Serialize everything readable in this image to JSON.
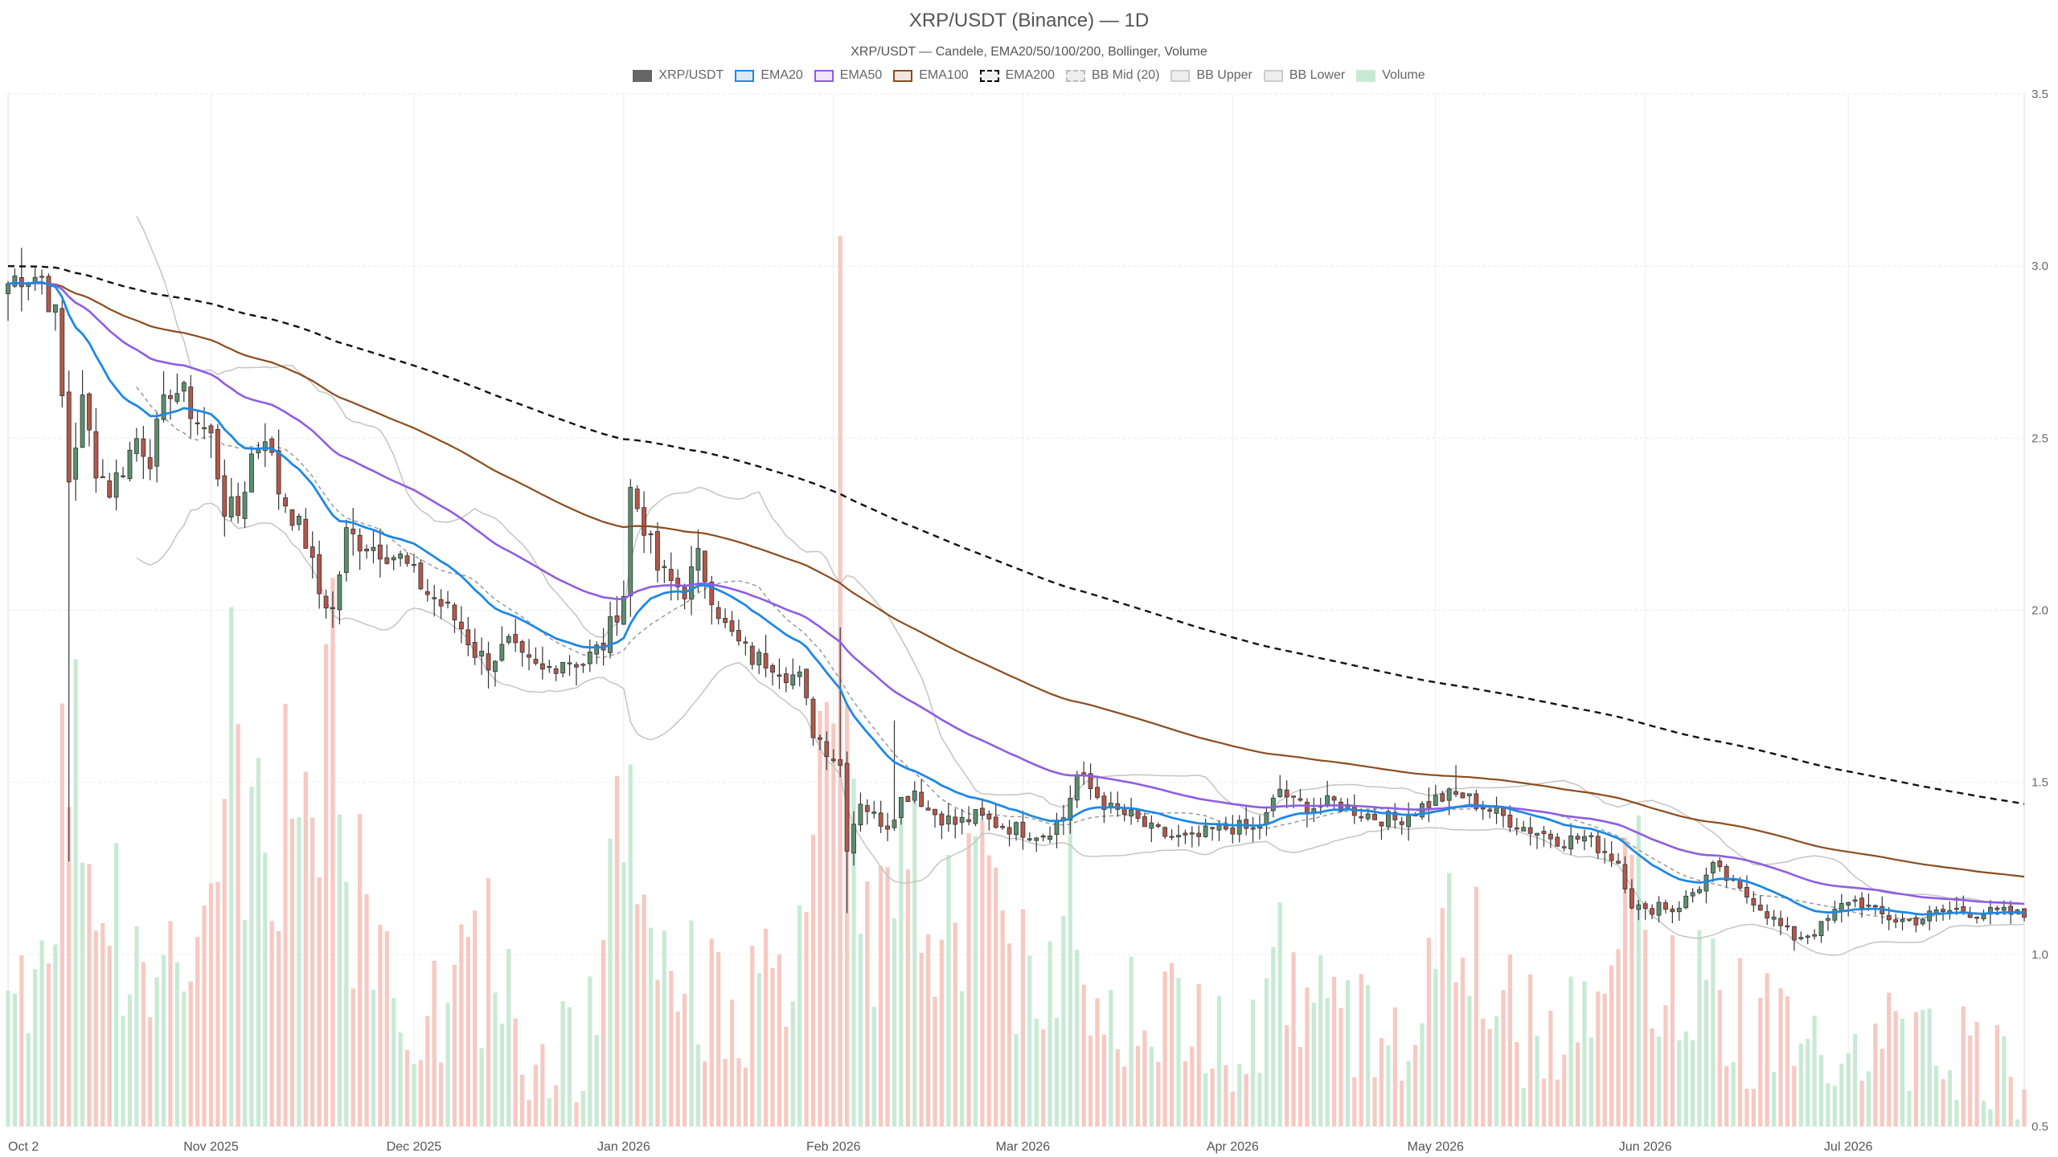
{
  "chart_data": {
    "type": "candlestick",
    "title": "XRP/USDT (Binance) — 1D",
    "subtitle": "XRP/USDT — Candele, EMA20/50/100/200, Bollinger, Volume",
    "legend": [
      {
        "label": "XRP/USDT",
        "swatch": "#666666",
        "border": "#666666"
      },
      {
        "label": "EMA20",
        "swatch": "#dbe8f5",
        "border": "#1e88e5"
      },
      {
        "label": "EMA50",
        "swatch": "#efe6fb",
        "border": "#8e5ce6"
      },
      {
        "label": "EMA100",
        "swatch": "#f0e6dc",
        "border": "#8b4c1e"
      },
      {
        "label": "EMA200",
        "swatch": "#f2f2f2",
        "border": "#000000",
        "dashed": true
      },
      {
        "label": "BB Mid (20)",
        "swatch": "#eeeeee",
        "border": "#bbbbbb",
        "dashed": true
      },
      {
        "label": "BB Upper",
        "swatch": "#eeeeee",
        "border": "#cccccc"
      },
      {
        "label": "BB Lower",
        "swatch": "#eeeeee",
        "border": "#cccccc"
      },
      {
        "label": "Volume",
        "swatch": "#c8ead4",
        "border": "#c8ead4"
      }
    ],
    "x_tick_labels": [
      {
        "label": "Oct 2",
        "day": 0
      },
      {
        "label": "Nov 2025",
        "day": 30
      },
      {
        "label": "Dec 2025",
        "day": 60
      },
      {
        "label": "Jan 2026",
        "day": 91
      },
      {
        "label": "Feb 2026",
        "day": 122
      },
      {
        "label": "Mar 2026",
        "day": 150
      },
      {
        "label": "Apr 2026",
        "day": 181
      },
      {
        "label": "May 2026",
        "day": 211
      },
      {
        "label": "Jun 2026",
        "day": 242
      },
      {
        "label": "Jul 2026",
        "day": 272
      }
    ],
    "x_range_days": [
      0,
      298
    ],
    "y_ticks": [
      0.5,
      1.0,
      1.5,
      2.0,
      2.5,
      3.0,
      3.5
    ],
    "ylim": [
      0.5,
      3.5
    ],
    "grid": true,
    "legend_position": "top-center",
    "colors": {
      "up": "#5b8f6e",
      "down": "#b4574a",
      "ema20": "#1e88e5",
      "ema50": "#8e5ce6",
      "ema100": "#8b4c1e",
      "ema200": "#111111",
      "bb": "#c4c4c4",
      "vol_up": "#c8ead4",
      "vol_down": "#f6c9c2"
    },
    "close_anchors": [
      [
        0,
        2.95
      ],
      [
        2,
        2.98
      ],
      [
        5,
        2.97
      ],
      [
        7,
        2.85
      ],
      [
        9,
        2.38
      ],
      [
        11,
        2.6
      ],
      [
        13,
        2.42
      ],
      [
        15,
        2.35
      ],
      [
        17,
        2.42
      ],
      [
        19,
        2.5
      ],
      [
        21,
        2.45
      ],
      [
        24,
        2.65
      ],
      [
        26,
        2.62
      ],
      [
        28,
        2.55
      ],
      [
        30,
        2.5
      ],
      [
        32,
        2.3
      ],
      [
        34,
        2.28
      ],
      [
        36,
        2.45
      ],
      [
        38,
        2.52
      ],
      [
        40,
        2.35
      ],
      [
        42,
        2.28
      ],
      [
        44,
        2.2
      ],
      [
        46,
        2.05
      ],
      [
        48,
        2.0
      ],
      [
        50,
        2.22
      ],
      [
        52,
        2.2
      ],
      [
        55,
        2.18
      ],
      [
        58,
        2.15
      ],
      [
        60,
        2.1
      ],
      [
        62,
        2.05
      ],
      [
        65,
        2.0
      ],
      [
        67,
        1.95
      ],
      [
        69,
        1.88
      ],
      [
        71,
        1.85
      ],
      [
        74,
        1.9
      ],
      [
        76,
        1.85
      ],
      [
        79,
        1.82
      ],
      [
        82,
        1.86
      ],
      [
        85,
        1.85
      ],
      [
        88,
        1.9
      ],
      [
        91,
        2.05
      ],
      [
        92,
        2.35
      ],
      [
        94,
        2.25
      ],
      [
        96,
        2.12
      ],
      [
        98,
        2.08
      ],
      [
        100,
        2.06
      ],
      [
        102,
        2.15
      ],
      [
        104,
        2.05
      ],
      [
        106,
        1.95
      ],
      [
        108,
        1.9
      ],
      [
        110,
        1.86
      ],
      [
        113,
        1.85
      ],
      [
        115,
        1.82
      ],
      [
        117,
        1.8
      ],
      [
        119,
        1.65
      ],
      [
        121,
        1.6
      ],
      [
        123,
        1.55
      ],
      [
        124,
        1.32
      ],
      [
        126,
        1.45
      ],
      [
        128,
        1.4
      ],
      [
        130,
        1.38
      ],
      [
        132,
        1.45
      ],
      [
        134,
        1.48
      ],
      [
        136,
        1.42
      ],
      [
        138,
        1.4
      ],
      [
        140,
        1.38
      ],
      [
        143,
        1.4
      ],
      [
        146,
        1.38
      ],
      [
        150,
        1.36
      ],
      [
        153,
        1.35
      ],
      [
        156,
        1.4
      ],
      [
        158,
        1.52
      ],
      [
        160,
        1.48
      ],
      [
        163,
        1.42
      ],
      [
        166,
        1.4
      ],
      [
        169,
        1.36
      ],
      [
        172,
        1.34
      ],
      [
        175,
        1.33
      ],
      [
        178,
        1.36
      ],
      [
        181,
        1.37
      ],
      [
        184,
        1.36
      ],
      [
        186,
        1.4
      ],
      [
        188,
        1.48
      ],
      [
        190,
        1.44
      ],
      [
        193,
        1.43
      ],
      [
        196,
        1.44
      ],
      [
        199,
        1.42
      ],
      [
        202,
        1.4
      ],
      [
        205,
        1.39
      ],
      [
        208,
        1.42
      ],
      [
        211,
        1.45
      ],
      [
        213,
        1.46
      ],
      [
        215,
        1.46
      ],
      [
        218,
        1.43
      ],
      [
        221,
        1.4
      ],
      [
        224,
        1.37
      ],
      [
        227,
        1.35
      ],
      [
        230,
        1.33
      ],
      [
        233,
        1.34
      ],
      [
        236,
        1.3
      ],
      [
        238,
        1.27
      ],
      [
        240,
        1.15
      ],
      [
        242,
        1.12
      ],
      [
        244,
        1.15
      ],
      [
        246,
        1.13
      ],
      [
        248,
        1.16
      ],
      [
        250,
        1.2
      ],
      [
        252,
        1.25
      ],
      [
        254,
        1.22
      ],
      [
        256,
        1.18
      ],
      [
        258,
        1.16
      ],
      [
        260,
        1.12
      ],
      [
        262,
        1.08
      ],
      [
        264,
        1.05
      ],
      [
        266,
        1.06
      ],
      [
        268,
        1.08
      ],
      [
        270,
        1.12
      ],
      [
        272,
        1.16
      ],
      [
        274,
        1.15
      ],
      [
        276,
        1.12
      ],
      [
        279,
        1.1
      ],
      [
        282,
        1.1
      ],
      [
        285,
        1.12
      ],
      [
        288,
        1.13
      ],
      [
        291,
        1.12
      ],
      [
        294,
        1.12
      ],
      [
        296,
        1.12
      ],
      [
        298,
        1.11
      ]
    ],
    "volume_anchors": [
      [
        0,
        0.97
      ],
      [
        3,
        0.93
      ],
      [
        6,
        0.98
      ],
      [
        9,
        1.9
      ],
      [
        11,
        1.4
      ],
      [
        14,
        1.25
      ],
      [
        17,
        1.0
      ],
      [
        20,
        0.9
      ],
      [
        23,
        1.0
      ],
      [
        26,
        1.0
      ],
      [
        30,
        1.05
      ],
      [
        33,
        1.75
      ],
      [
        36,
        1.2
      ],
      [
        39,
        1.45
      ],
      [
        42,
        1.35
      ],
      [
        45,
        1.55
      ],
      [
        48,
        1.75
      ],
      [
        51,
        1.2
      ],
      [
        54,
        1.0
      ],
      [
        57,
        0.9
      ],
      [
        60,
        0.85
      ],
      [
        63,
        0.8
      ],
      [
        66,
        0.9
      ],
      [
        69,
        0.95
      ],
      [
        72,
        1.0
      ],
      [
        75,
        0.8
      ],
      [
        78,
        0.75
      ],
      [
        81,
        0.7
      ],
      [
        84,
        0.72
      ],
      [
        87,
        0.8
      ],
      [
        90,
        1.25
      ],
      [
        92,
        1.5
      ],
      [
        94,
        1.05
      ],
      [
        96,
        1.1
      ],
      [
        99,
        0.95
      ],
      [
        102,
        0.88
      ],
      [
        105,
        0.95
      ],
      [
        108,
        0.8
      ],
      [
        111,
        0.85
      ],
      [
        114,
        0.9
      ],
      [
        117,
        0.95
      ],
      [
        120,
        1.4
      ],
      [
        122,
        1.9
      ],
      [
        123,
        3.1
      ],
      [
        125,
        1.3
      ],
      [
        127,
        1.15
      ],
      [
        130,
        1.05
      ],
      [
        133,
        1.2
      ],
      [
        136,
        1.15
      ],
      [
        139,
        1.1
      ],
      [
        142,
        1.2
      ],
      [
        145,
        1.15
      ],
      [
        148,
        1.05
      ],
      [
        151,
        0.95
      ],
      [
        154,
        0.9
      ],
      [
        157,
        1.25
      ],
      [
        160,
        0.95
      ],
      [
        163,
        0.88
      ],
      [
        166,
        0.9
      ],
      [
        169,
        0.82
      ],
      [
        172,
        0.8
      ],
      [
        175,
        0.8
      ],
      [
        178,
        0.82
      ],
      [
        181,
        0.8
      ],
      [
        184,
        0.82
      ],
      [
        188,
        1.0
      ],
      [
        191,
        0.85
      ],
      [
        194,
        0.82
      ],
      [
        197,
        0.8
      ],
      [
        200,
        0.78
      ],
      [
        203,
        0.75
      ],
      [
        206,
        0.8
      ],
      [
        209,
        0.9
      ],
      [
        212,
        1.0
      ],
      [
        215,
        1.15
      ],
      [
        218,
        0.9
      ],
      [
        221,
        0.82
      ],
      [
        224,
        0.8
      ],
      [
        227,
        0.85
      ],
      [
        230,
        0.8
      ],
      [
        233,
        0.92
      ],
      [
        236,
        0.95
      ],
      [
        238,
        1.1
      ],
      [
        240,
        1.55
      ],
      [
        242,
        1.0
      ],
      [
        245,
        0.9
      ],
      [
        248,
        0.8
      ],
      [
        251,
        0.95
      ],
      [
        254,
        0.85
      ],
      [
        257,
        0.8
      ],
      [
        260,
        0.78
      ],
      [
        263,
        0.9
      ],
      [
        266,
        0.85
      ],
      [
        269,
        0.8
      ],
      [
        272,
        0.72
      ],
      [
        275,
        0.78
      ],
      [
        278,
        0.75
      ],
      [
        281,
        0.72
      ],
      [
        284,
        0.74
      ],
      [
        287,
        0.72
      ],
      [
        290,
        0.75
      ],
      [
        293,
        0.72
      ],
      [
        296,
        0.65
      ],
      [
        298,
        0.6
      ]
    ]
  }
}
